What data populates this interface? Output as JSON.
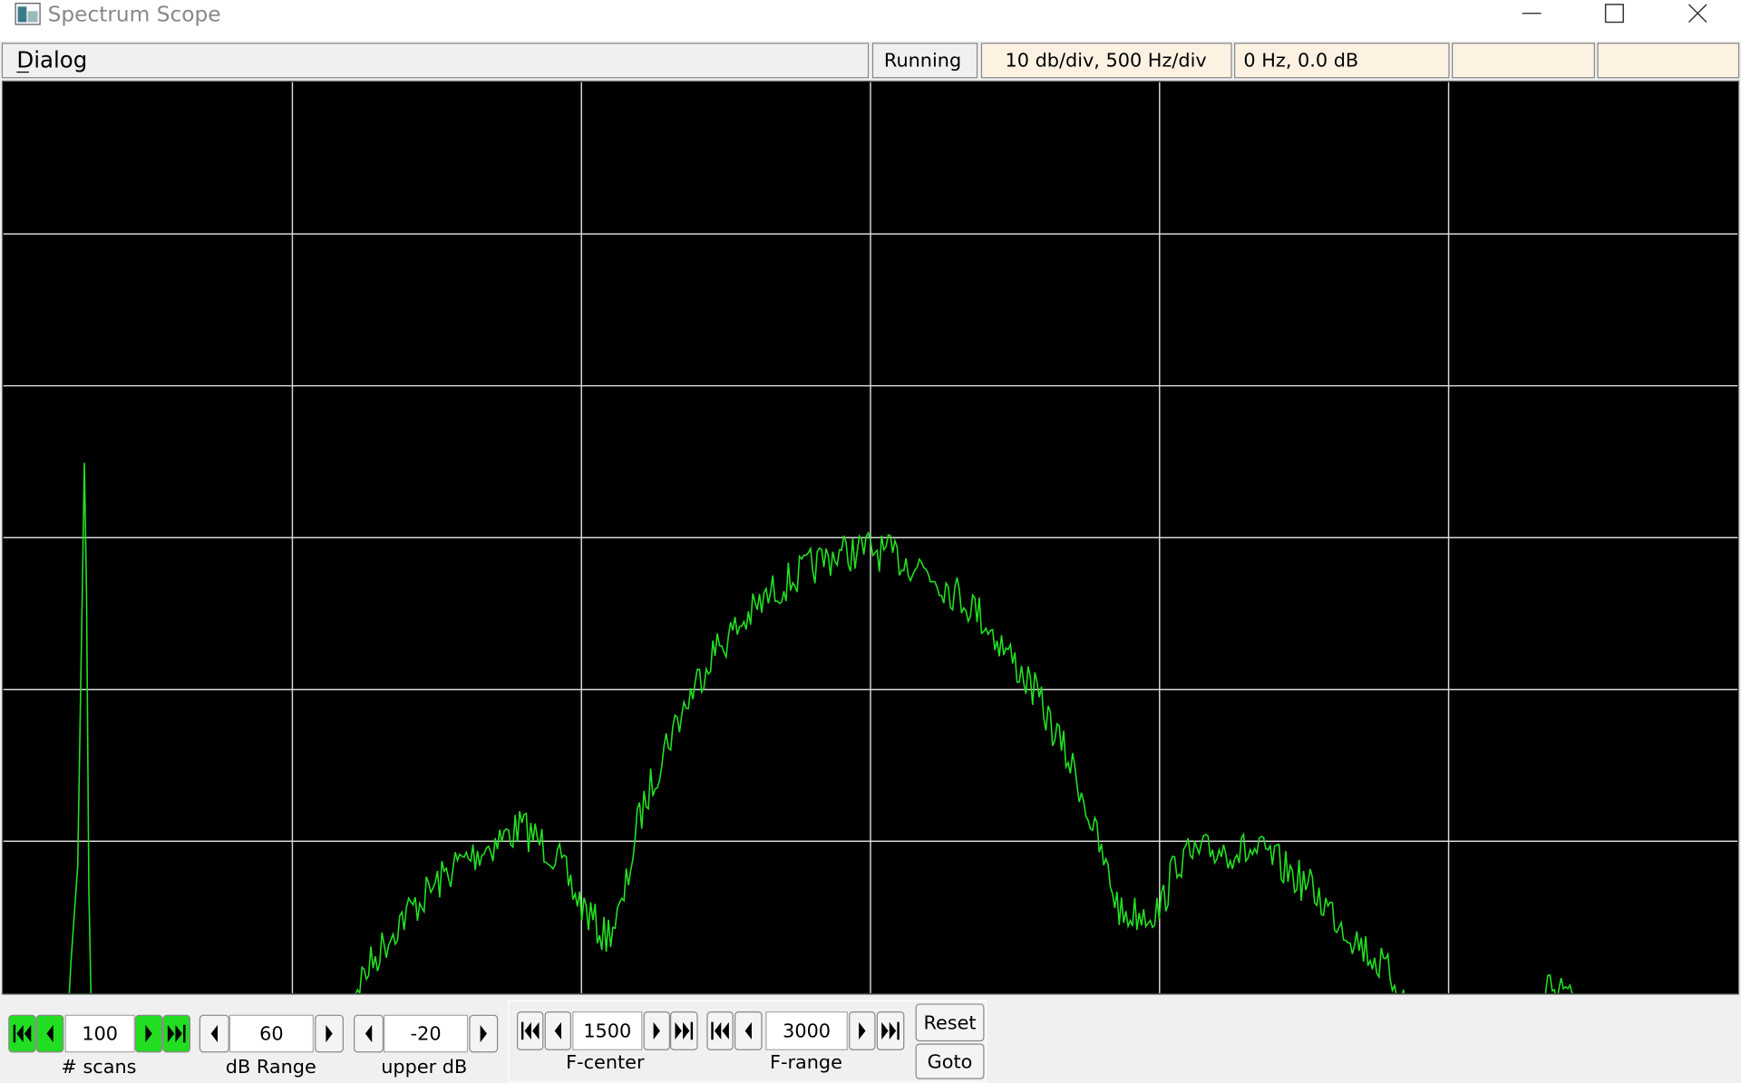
{
  "window": {
    "title": "Spectrum Scope"
  },
  "menu": {
    "label": "Dialog"
  },
  "status": [
    "Running",
    "10 db/div, 500 Hz/div",
    "0 Hz, 0.0 dB"
  ],
  "controls": [
    {
      "label": "# scans",
      "value": 100
    },
    {
      "label": "dB Range",
      "value": 60
    },
    {
      "label": "upper dB",
      "value": -20
    },
    {
      "label": "F-center",
      "value": 1500
    },
    {
      "label": "F-range",
      "value": 3000
    }
  ],
  "buttons": [
    "Reset",
    "Goto"
  ]
}
